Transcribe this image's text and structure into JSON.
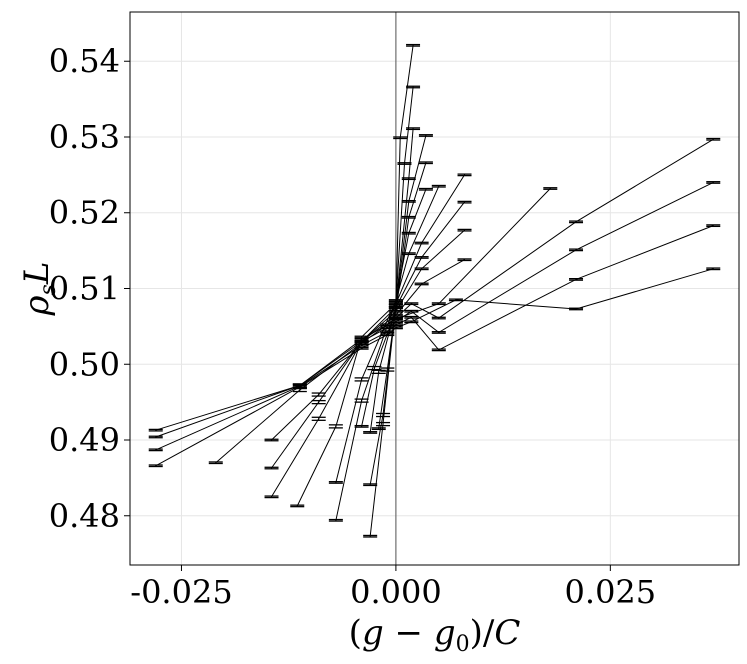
{
  "chart_data": {
    "type": "line",
    "xlabel_parts": [
      "(",
      "g",
      " − ",
      "g",
      "0",
      ")/",
      "C"
    ],
    "ylabel_parts": [
      "ρ",
      "s",
      "L"
    ],
    "xlim": [
      -0.031,
      0.04
    ],
    "ylim": [
      0.4735,
      0.5465
    ],
    "x_ticks": [
      -0.025,
      0.0,
      0.025
    ],
    "x_tick_labels": [
      "-0.025",
      "0.000",
      "0.025"
    ],
    "y_ticks": [
      0.48,
      0.49,
      0.5,
      0.51,
      0.52,
      0.53,
      0.54
    ],
    "y_tick_labels": [
      "0.48",
      "0.49",
      "0.50",
      "0.51",
      "0.52",
      "0.53",
      "0.54"
    ],
    "grid": true,
    "reference_line_x": 0.0,
    "series": [
      {
        "x": [
          -0.028,
          -0.0112,
          -0.004,
          -0.001,
          0.0,
          0.0018,
          0.007,
          0.021,
          0.037
        ],
        "y": [
          0.4866,
          0.497,
          0.5021,
          0.5039,
          0.5048,
          0.5056,
          0.5085,
          0.5073,
          0.5126
        ],
        "err": [
          0.0001,
          0.0002,
          0.0001,
          0.0001,
          0.0001,
          0.0001,
          0.0001,
          0.0001,
          0.0001
        ]
      },
      {
        "x": [
          -0.028,
          -0.0112,
          -0.004,
          -0.001,
          0.0,
          0.0018,
          0.005,
          0.021,
          0.037
        ],
        "y": [
          0.4887,
          0.4971,
          0.5025,
          0.5043,
          0.5052,
          0.5062,
          0.5019,
          0.5112,
          0.5183
        ],
        "err": [
          0.0001,
          0.0002,
          0.0001,
          0.0001,
          0.0001,
          0.0001,
          0.0001,
          0.0001,
          0.0001
        ]
      },
      {
        "x": [
          -0.028,
          -0.0112,
          -0.004,
          -0.001,
          0.0,
          0.0018,
          0.005,
          0.021,
          0.037
        ],
        "y": [
          0.4904,
          0.4972,
          0.503,
          0.5048,
          0.5056,
          0.507,
          0.5042,
          0.5151,
          0.524
        ],
        "err": [
          0.0001,
          0.0002,
          0.0001,
          0.0001,
          0.0001,
          0.0001,
          0.0001,
          0.0001,
          0.0001
        ]
      },
      {
        "x": [
          -0.028,
          -0.0112,
          -0.004,
          -0.001,
          0.0,
          0.0018,
          0.005,
          0.021,
          0.037
        ],
        "y": [
          0.4913,
          0.4972,
          0.5033,
          0.5052,
          0.5061,
          0.508,
          0.5061,
          0.5188,
          0.5297
        ],
        "err": [
          0.0001,
          0.0002,
          0.0001,
          0.0001,
          0.0001,
          0.0001,
          0.0001,
          0.0001,
          0.0001
        ]
      },
      {
        "x": [
          -0.021,
          -0.0112,
          -0.004,
          0.0,
          0.005,
          0.018
        ],
        "y": [
          0.487,
          0.4966,
          0.5028,
          0.506,
          0.508,
          0.5232
        ],
        "err": [
          0.0001,
          0.0002,
          0.0001,
          0.0001,
          0.0001,
          0.0001
        ]
      },
      {
        "x": [
          -0.0145,
          -0.009,
          -0.004,
          0.0,
          0.003,
          0.008
        ],
        "y": [
          0.49,
          0.496,
          0.503,
          0.5065,
          0.5106,
          0.5138
        ],
        "err": [
          0.0001,
          0.0002,
          0.0001,
          0.0001,
          0.0001,
          0.0001
        ]
      },
      {
        "x": [
          -0.0145,
          -0.009,
          -0.004,
          0.0,
          0.003,
          0.008
        ],
        "y": [
          0.4863,
          0.495,
          0.503,
          0.507,
          0.5126,
          0.5177
        ],
        "err": [
          0.0001,
          0.0002,
          0.0001,
          0.0001,
          0.0001,
          0.0001
        ]
      },
      {
        "x": [
          -0.0145,
          -0.009,
          -0.004,
          0.0,
          0.003,
          0.008
        ],
        "y": [
          0.4825,
          0.4928,
          0.503,
          0.5075,
          0.5141,
          0.5214
        ],
        "err": [
          0.0001,
          0.0002,
          0.0001,
          0.0001,
          0.0001,
          0.0001
        ]
      },
      {
        "x": [
          -0.0115,
          -0.007,
          -0.004,
          0.0,
          0.003,
          0.008
        ],
        "y": [
          0.4813,
          0.4918,
          0.5036,
          0.508,
          0.516,
          0.525
        ],
        "err": [
          0.0001,
          0.0002,
          0.0001,
          0.0001,
          0.0001,
          0.0001
        ]
      },
      {
        "x": [
          -0.007,
          -0.004,
          0.0,
          0.0015,
          0.005
        ],
        "y": [
          0.4844,
          0.498,
          0.5084,
          0.5146,
          0.5235
        ],
        "err": [
          0.0001,
          0.0002,
          0.0001,
          0.0001,
          0.0001
        ]
      },
      {
        "x": [
          -0.007,
          -0.004,
          0.0,
          0.0015,
          0.0035
        ],
        "y": [
          0.4794,
          0.4952,
          0.5084,
          0.5173,
          0.5231
        ],
        "err": [
          0.0001,
          0.0002,
          0.0001,
          0.0001,
          0.0001
        ]
      },
      {
        "x": [
          -0.004,
          -0.0025,
          0.0,
          0.0015,
          0.0035
        ],
        "y": [
          0.4918,
          0.4995,
          0.507,
          0.5194,
          0.5266
        ],
        "err": [
          0.0001,
          0.0002,
          0.0001,
          0.0001,
          0.0001
        ]
      },
      {
        "x": [
          -0.003,
          -0.002,
          0.0,
          0.0015,
          0.0035
        ],
        "y": [
          0.491,
          0.499,
          0.5075,
          0.5215,
          0.5302
        ],
        "err": [
          0.0001,
          0.0002,
          0.0001,
          0.0001,
          0.0001
        ]
      },
      {
        "x": [
          -0.003,
          -0.0015,
          0.0,
          0.0015,
          0.002
        ],
        "y": [
          0.4841,
          0.4933,
          0.5078,
          0.5245,
          0.5311
        ],
        "err": [
          0.0001,
          0.0002,
          0.0001,
          0.0001,
          0.0001
        ]
      },
      {
        "x": [
          -0.003,
          -0.0015,
          0.0,
          0.001,
          0.002
        ],
        "y": [
          0.4773,
          0.4921,
          0.508,
          0.5265,
          0.5366
        ],
        "err": [
          0.0001,
          0.0002,
          0.0001,
          0.0001,
          0.0001
        ]
      },
      {
        "x": [
          -0.002,
          -0.001,
          0.0,
          0.0005,
          0.002
        ],
        "y": [
          0.4915,
          0.4993,
          0.5075,
          0.5299,
          0.5421
        ],
        "err": [
          0.0001,
          0.0002,
          0.0001,
          0.0001,
          0.0001
        ]
      }
    ]
  }
}
